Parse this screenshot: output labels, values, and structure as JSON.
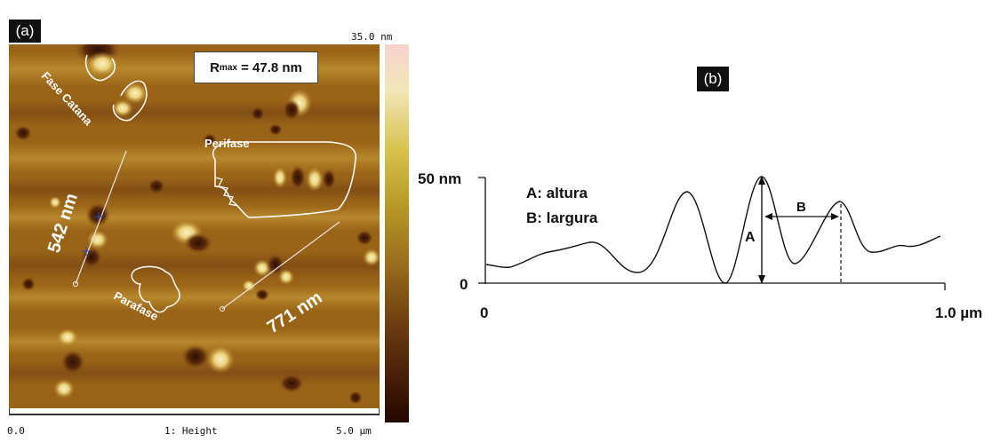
{
  "panel_a": {
    "label": "(a)",
    "scale_max": "35.0 nm",
    "rmax_prefix": "R",
    "rmax_sub": "max",
    "rmax_suffix": " = 47.8 nm",
    "annotations": {
      "fase_catana": "Fase Catana",
      "perifase": "Perifase",
      "parafase": "Parafase",
      "length_1": "542 nm",
      "length_2": "771 nm"
    },
    "axis_left": "0.0",
    "axis_center": "1: Height",
    "axis_right": "5.0 µm"
  },
  "panel_b": {
    "label": "(b)",
    "y_top_label": "50 nm",
    "y_zero_label": "0",
    "x_start_label": "0",
    "x_end_label": "1.0 µm",
    "legend_a": "A: altura",
    "legend_b": "B: largura",
    "marker_a": "A",
    "marker_b": "B"
  },
  "colors": {
    "afm_base": "#9a6418",
    "afm_bright": "#f6e6a8",
    "afm_dark": "#3a1606",
    "tag_bg": "#111111"
  }
}
